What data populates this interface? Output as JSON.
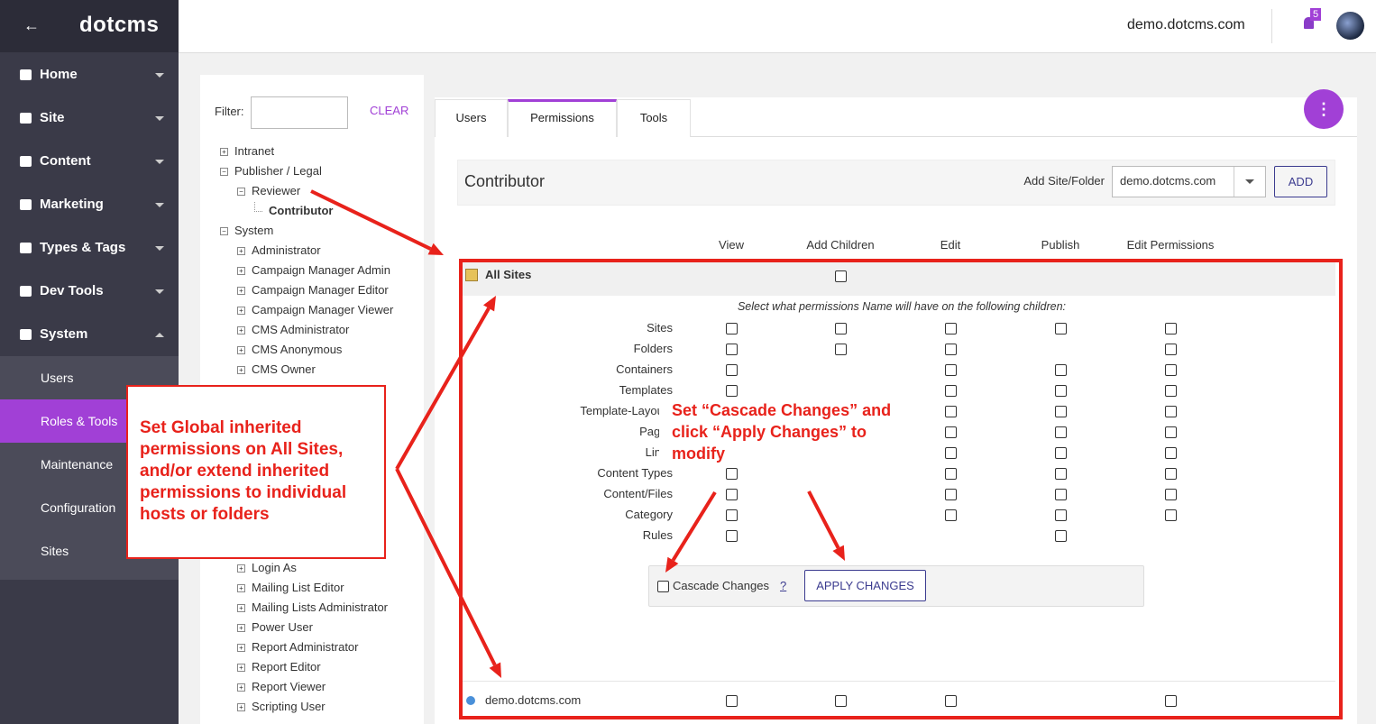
{
  "header": {
    "logo": "dotcms",
    "site": "demo.dotcms.com",
    "notifications": 5
  },
  "nav": {
    "items": [
      "Home",
      "Site",
      "Content",
      "Marketing",
      "Types & Tags",
      "Dev Tools",
      "System"
    ],
    "system_items": [
      "Users",
      "Roles & Tools",
      "Maintenance",
      "Configuration",
      "Sites"
    ]
  },
  "roles": {
    "filter_label": "Filter:",
    "clear": "CLEAR",
    "tree": [
      {
        "label": "Intranet"
      },
      {
        "label": "Publisher / Legal",
        "children": [
          {
            "label": "Reviewer",
            "children": [
              {
                "label": "Contributor"
              }
            ]
          }
        ]
      },
      {
        "label": "System",
        "children": [
          {
            "label": "Administrator"
          },
          {
            "label": "Campaign Manager Admin"
          },
          {
            "label": "Campaign Manager Editor"
          },
          {
            "label": "Campaign Manager Viewer"
          },
          {
            "label": "CMS Administrator"
          },
          {
            "label": "CMS Anonymous"
          },
          {
            "label": "CMS Owner"
          },
          {
            "label": "Login As"
          },
          {
            "label": "Mailing List Editor"
          },
          {
            "label": "Mailing Lists Administrator"
          },
          {
            "label": "Power User"
          },
          {
            "label": "Report Administrator"
          },
          {
            "label": "Report Editor"
          },
          {
            "label": "Report Viewer"
          },
          {
            "label": "Scripting User"
          }
        ]
      }
    ]
  },
  "tabs": [
    "Users",
    "Permissions",
    "Tools"
  ],
  "permissions": {
    "role": "Contributor",
    "add_label": "Add Site/Folder",
    "site_select": "demo.dotcms.com",
    "add_button": "ADD",
    "columns": [
      "View",
      "Add Children",
      "Edit",
      "Publish",
      "Edit Permissions"
    ],
    "all_sites": "All Sites",
    "children_note": "Select what permissions Name will have on the following children:",
    "children": [
      "Sites",
      "Folders",
      "Containers",
      "Templates",
      "Template-Layouts",
      "Pages",
      "Links",
      "Content Types",
      "Content/Files",
      "Category",
      "Rules"
    ],
    "cascade": "Cascade Changes",
    "help": "?",
    "apply": "APPLY CHANGES",
    "hosts": [
      "demo.dotcms.com"
    ]
  },
  "annotations": {
    "global": "Set Global inherited permissions on All Sites, and/or extend inherited permissions to individual hosts or folders",
    "cascade": "Set “Cascade Changes” and click “Apply Changes” to modify"
  }
}
